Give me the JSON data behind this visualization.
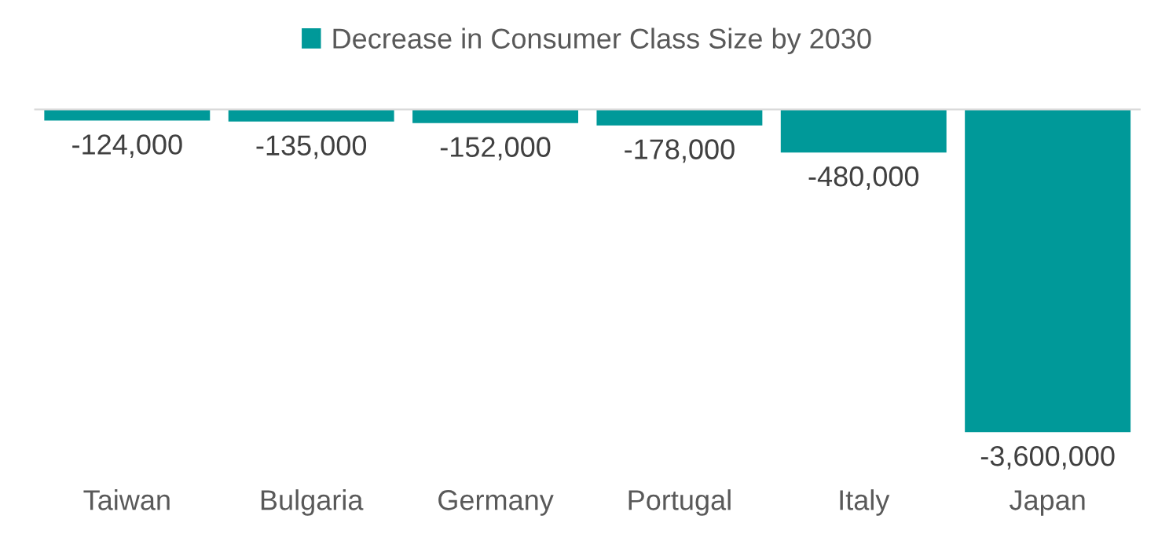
{
  "chart_data": {
    "type": "bar",
    "categories": [
      "Taiwan",
      "Bulgaria",
      "Germany",
      "Portugal",
      "Italy",
      "Japan"
    ],
    "series": [
      {
        "name": "Decrease in Consumer Class Size by 2030",
        "color": "#009999",
        "values": [
          -124000,
          -135000,
          -152000,
          -178000,
          -480000,
          -3600000
        ],
        "value_labels": [
          "-124,000",
          "-135,000",
          "-152,000",
          "-178,000",
          "-480,000",
          "-3,600,000"
        ]
      }
    ],
    "legend": "top",
    "grid": false
  }
}
